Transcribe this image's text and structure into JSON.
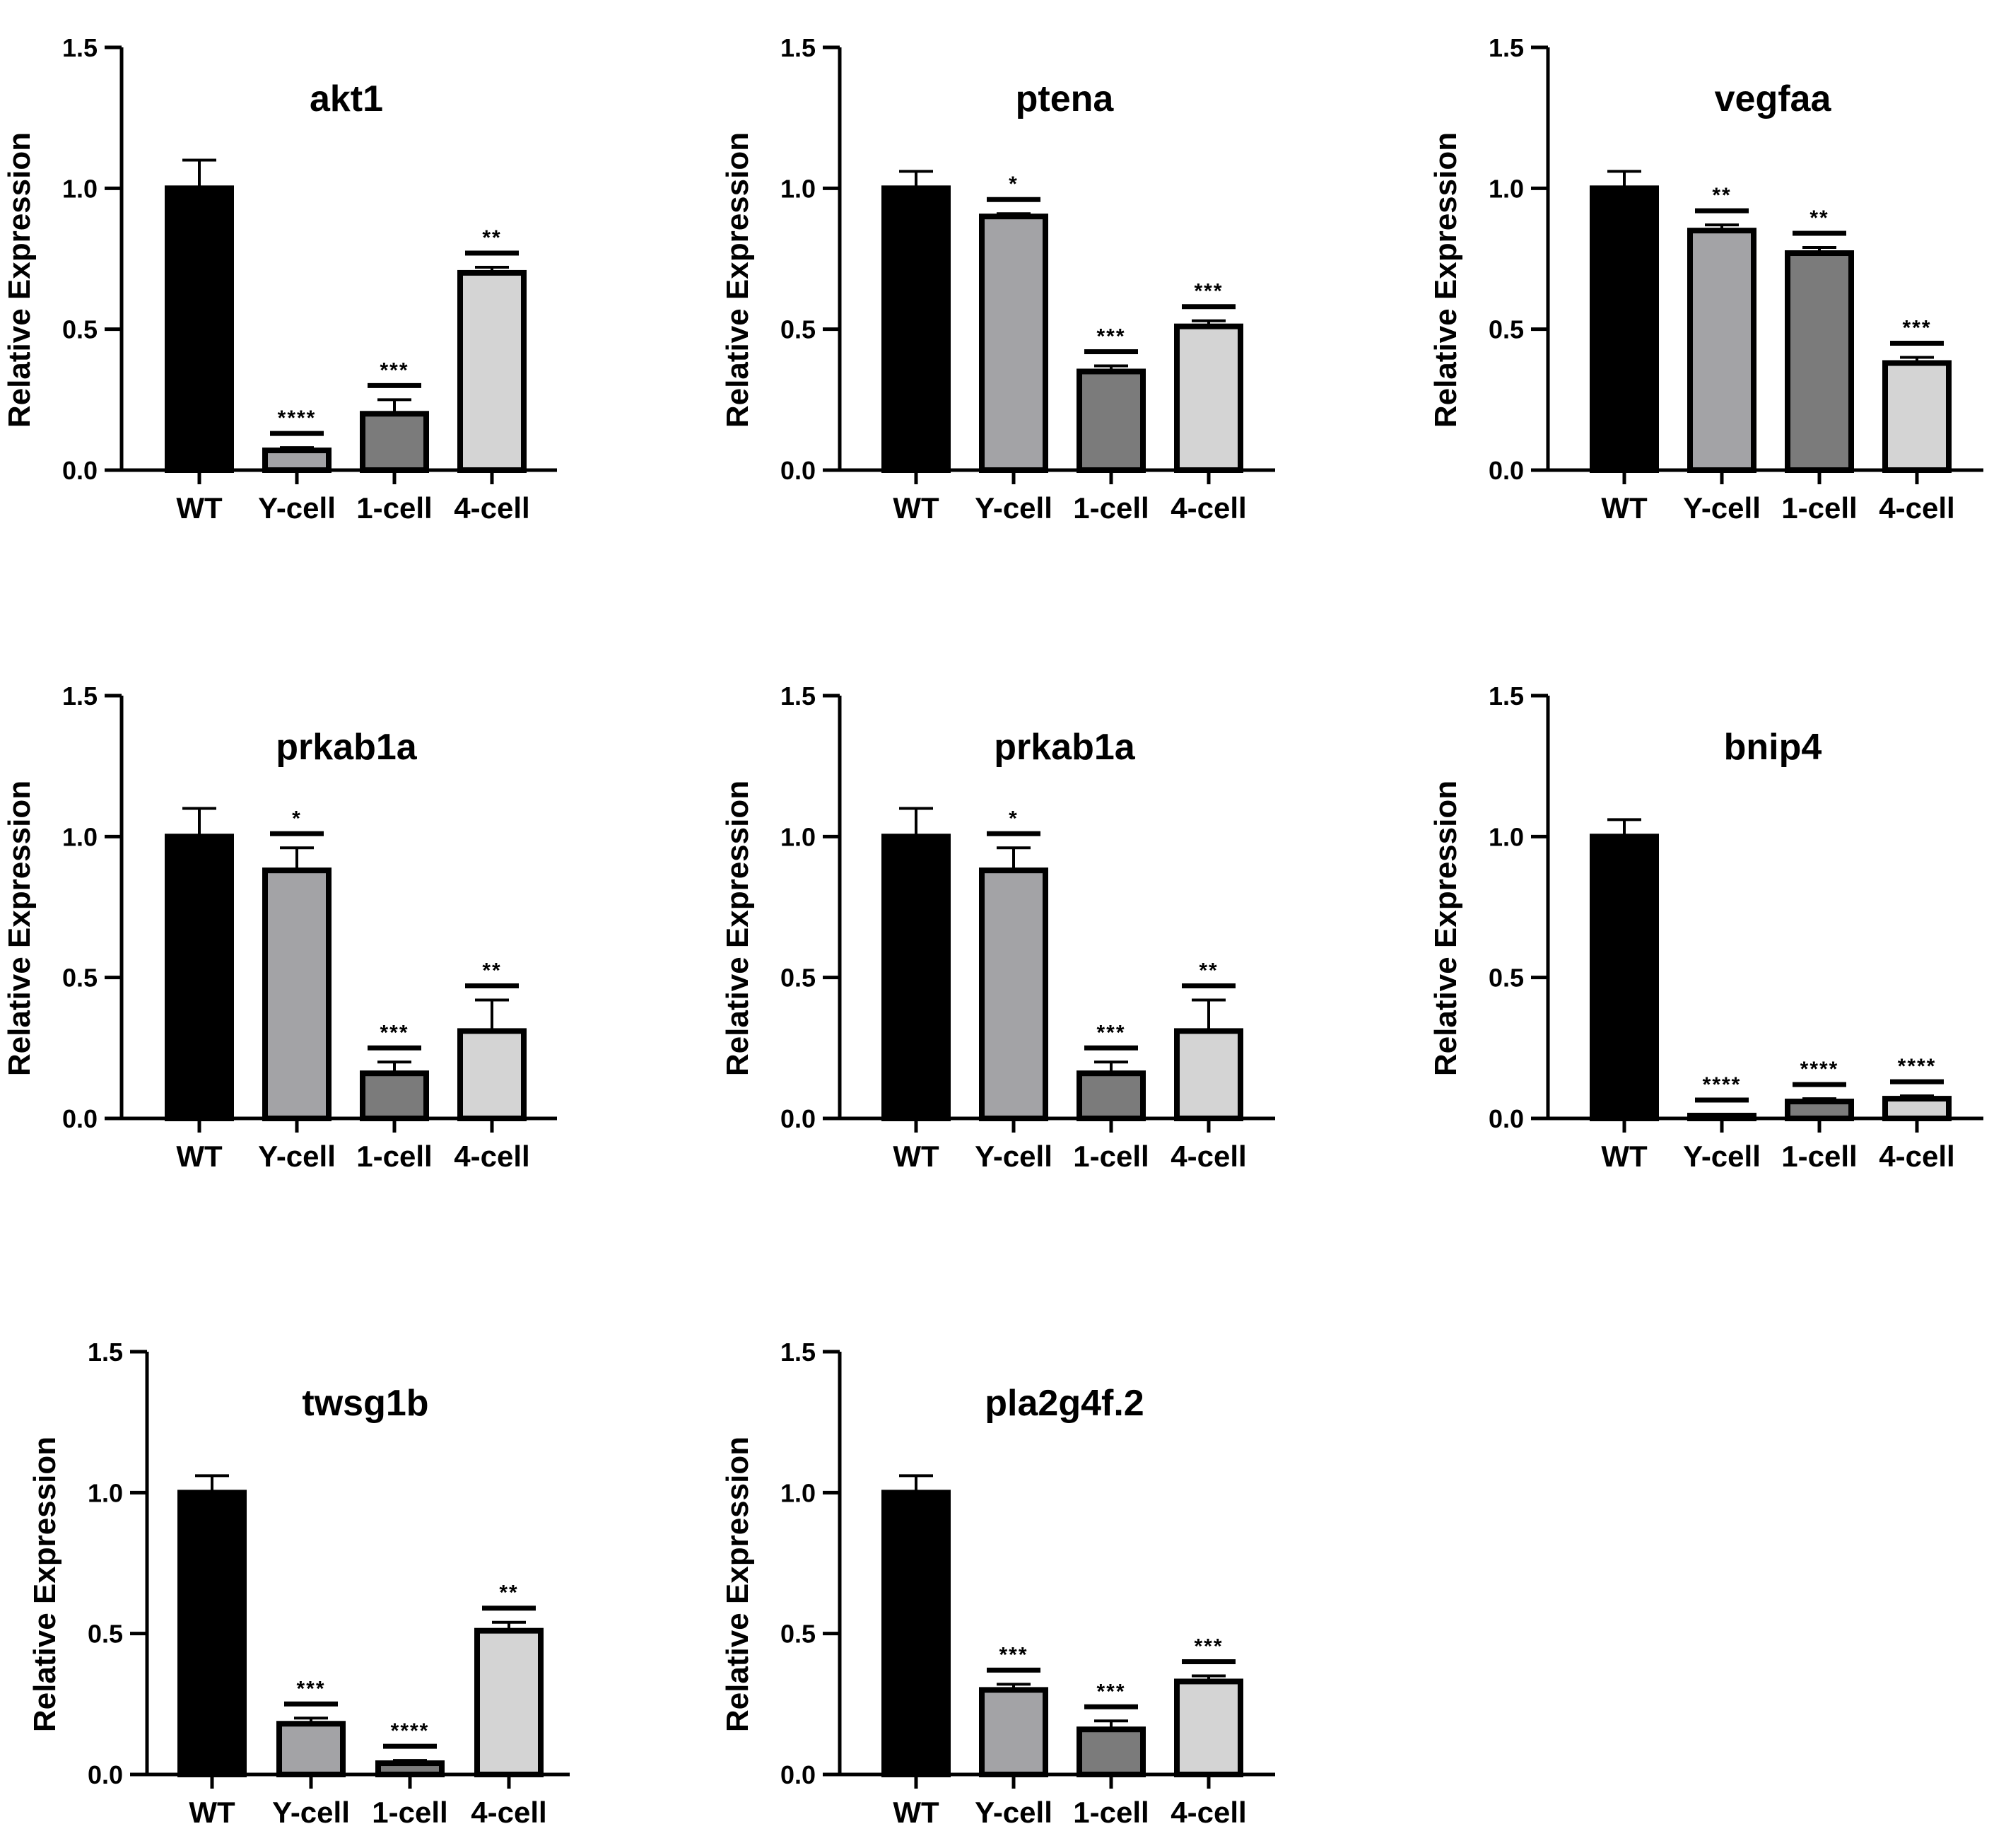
{
  "figure": {
    "y_axis_label": "Relative Expression"
  },
  "colors": {
    "WT": "#000000",
    "Y-cell": "#a3a3a6",
    "1-cell": "#7b7b7b",
    "4-cell": "#d4d4d4"
  },
  "chart_data": [
    {
      "type": "bar",
      "title": "akt1",
      "ylabel": "Relative Expression",
      "categories": [
        "WT",
        "Y-cell",
        "1-cell",
        "4-cell"
      ],
      "values": [
        1.0,
        0.07,
        0.2,
        0.7
      ],
      "errors": [
        0.1,
        0.01,
        0.05,
        0.02
      ],
      "significance": [
        "",
        "****",
        "***",
        "**"
      ],
      "ylim": [
        0,
        1.5
      ],
      "yticks": [
        "0.0",
        "0.5",
        "1.0",
        "1.5"
      ]
    },
    {
      "type": "bar",
      "title": "ptena",
      "ylabel": "Relative Expression",
      "categories": [
        "WT",
        "Y-cell",
        "1-cell",
        "4-cell"
      ],
      "values": [
        1.0,
        0.9,
        0.35,
        0.51
      ],
      "errors": [
        0.06,
        0.01,
        0.02,
        0.02
      ],
      "significance": [
        "",
        "*",
        "***",
        "***"
      ],
      "ylim": [
        0,
        1.5
      ],
      "yticks": [
        "0.0",
        "0.5",
        "1.0",
        "1.5"
      ]
    },
    {
      "type": "bar",
      "title": "vegfaa",
      "ylabel": "Relative Expression",
      "categories": [
        "WT",
        "Y-cell",
        "1-cell",
        "4-cell"
      ],
      "values": [
        1.0,
        0.85,
        0.77,
        0.38
      ],
      "errors": [
        0.06,
        0.02,
        0.02,
        0.02
      ],
      "significance": [
        "",
        "**",
        "**",
        "***"
      ],
      "ylim": [
        0,
        1.5
      ],
      "yticks": [
        "0.0",
        "0.5",
        "1.0",
        "1.5"
      ]
    },
    {
      "type": "bar",
      "title": "prkab1a",
      "ylabel": "Relative Expression",
      "categories": [
        "WT",
        "Y-cell",
        "1-cell",
        "4-cell"
      ],
      "values": [
        1.0,
        0.88,
        0.16,
        0.31
      ],
      "errors": [
        0.1,
        0.08,
        0.04,
        0.11
      ],
      "significance": [
        "",
        "*",
        "***",
        "**"
      ],
      "ylim": [
        0,
        1.5
      ],
      "yticks": [
        "0.0",
        "0.5",
        "1.0",
        "1.5"
      ]
    },
    {
      "type": "bar",
      "title": "prkab1a",
      "ylabel": "Relative Expression",
      "categories": [
        "WT",
        "Y-cell",
        "1-cell",
        "4-cell"
      ],
      "values": [
        1.0,
        0.88,
        0.16,
        0.31
      ],
      "errors": [
        0.1,
        0.08,
        0.04,
        0.11
      ],
      "significance": [
        "",
        "*",
        "***",
        "**"
      ],
      "ylim": [
        0,
        1.5
      ],
      "yticks": [
        "0.0",
        "0.5",
        "1.0",
        "1.5"
      ]
    },
    {
      "type": "bar",
      "title": "bnip4",
      "ylabel": "Relative Expression",
      "categories": [
        "WT",
        "Y-cell",
        "1-cell",
        "4-cell"
      ],
      "values": [
        1.0,
        0.01,
        0.06,
        0.07
      ],
      "errors": [
        0.06,
        0.005,
        0.01,
        0.01
      ],
      "significance": [
        "",
        "****",
        "****",
        "****"
      ],
      "ylim": [
        0,
        1.5
      ],
      "yticks": [
        "0.0",
        "0.5",
        "1.0",
        "1.5"
      ]
    },
    {
      "type": "bar",
      "title": "twsg1b",
      "ylabel": "Relative Expression",
      "categories": [
        "WT",
        "Y-cell",
        "1-cell",
        "4-cell"
      ],
      "values": [
        1.0,
        0.18,
        0.04,
        0.51
      ],
      "errors": [
        0.06,
        0.02,
        0.01,
        0.03
      ],
      "significance": [
        "",
        "***",
        "****",
        "**"
      ],
      "ylim": [
        0,
        1.5
      ],
      "yticks": [
        "0.0",
        "0.5",
        "1.0",
        "1.5"
      ]
    },
    {
      "type": "bar",
      "title": "pla2g4f.2",
      "ylabel": "Relative Expression",
      "categories": [
        "WT",
        "Y-cell",
        "1-cell",
        "4-cell"
      ],
      "values": [
        1.0,
        0.3,
        0.16,
        0.33
      ],
      "errors": [
        0.06,
        0.02,
        0.03,
        0.02
      ],
      "significance": [
        "",
        "***",
        "***",
        "***"
      ],
      "ylim": [
        0,
        1.5
      ],
      "yticks": [
        "0.0",
        "0.5",
        "1.0",
        "1.5"
      ]
    }
  ]
}
